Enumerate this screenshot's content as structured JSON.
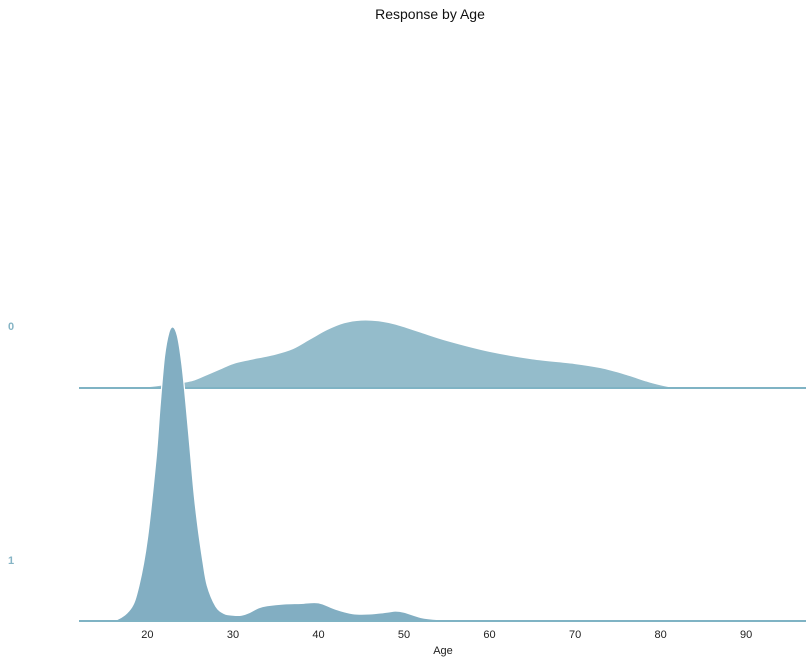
{
  "chart_data": {
    "type": "area",
    "subtype": "ridgeline",
    "title": "Response by Age",
    "xlabel": "Age",
    "ylabel": "",
    "xlim": [
      12,
      97
    ],
    "xticks": [
      20,
      30,
      40,
      50,
      60,
      70,
      80,
      90
    ],
    "grid": false,
    "legend": "none",
    "baseline_color": "#7fb3c4",
    "series": [
      {
        "name": "0",
        "color": "#94bccb",
        "label_color": "#85b4c5",
        "x": [
          15,
          17.5,
          20,
          22,
          24,
          25.5,
          27,
          28.5,
          30,
          32,
          35,
          37,
          39,
          41,
          43,
          45,
          47,
          49,
          52,
          55,
          60,
          65,
          70,
          73,
          76,
          79,
          82,
          85,
          88,
          92
        ],
        "density": [
          0.0,
          0.01,
          0.02,
          0.05,
          0.08,
          0.12,
          0.2,
          0.28,
          0.36,
          0.42,
          0.5,
          0.58,
          0.72,
          0.86,
          0.96,
          1.0,
          0.99,
          0.94,
          0.82,
          0.7,
          0.54,
          0.43,
          0.36,
          0.3,
          0.2,
          0.08,
          0.0,
          0.0,
          0.0,
          0.0
        ]
      },
      {
        "name": "1",
        "color": "#82aec2",
        "label_color": "#85b4c5",
        "x": [
          14,
          16,
          18,
          19,
          20,
          21,
          21.5,
          22,
          22.5,
          23,
          23.5,
          24,
          24.5,
          25,
          25.5,
          26,
          26.5,
          27,
          28,
          29,
          30,
          31,
          32,
          33,
          34,
          36,
          38,
          40,
          42,
          44,
          46,
          48,
          49,
          50,
          52,
          54,
          56,
          60,
          70,
          80,
          90,
          97
        ],
        "density": [
          0.0,
          0.0,
          0.04,
          0.12,
          0.28,
          0.55,
          0.74,
          0.9,
          0.98,
          1.0,
          0.97,
          0.88,
          0.74,
          0.58,
          0.42,
          0.3,
          0.2,
          0.12,
          0.05,
          0.025,
          0.02,
          0.02,
          0.03,
          0.045,
          0.052,
          0.058,
          0.06,
          0.062,
          0.04,
          0.025,
          0.024,
          0.03,
          0.034,
          0.03,
          0.012,
          0.005,
          0.004,
          0.003,
          0.003,
          0.002,
          0.002,
          0.002
        ]
      }
    ]
  }
}
